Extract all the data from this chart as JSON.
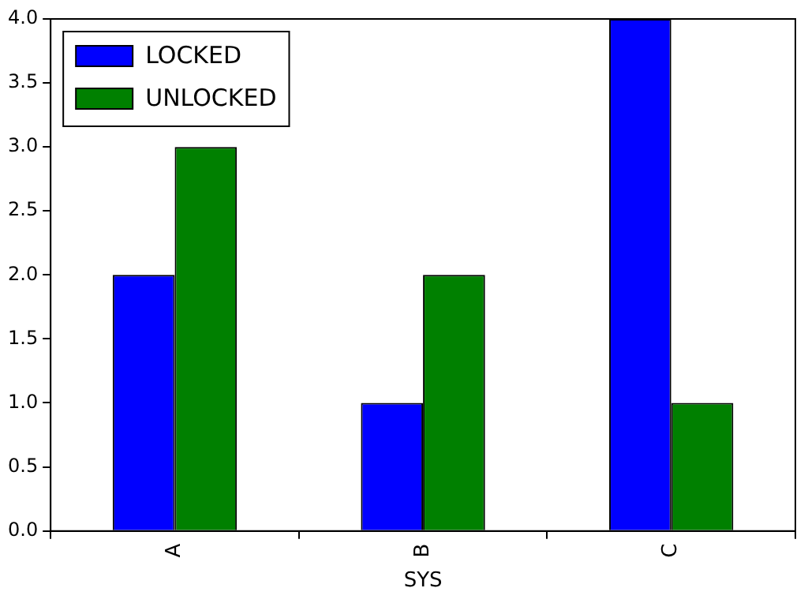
{
  "chart_data": {
    "type": "bar",
    "xlabel": "SYS",
    "categories": [
      "A",
      "B",
      "C"
    ],
    "series": [
      {
        "name": "LOCKED",
        "color": "#0000ff",
        "values": [
          2,
          1,
          4
        ]
      },
      {
        "name": "UNLOCKED",
        "color": "#008000",
        "values": [
          3,
          2,
          1
        ]
      }
    ],
    "ylim": [
      0,
      4
    ],
    "yticks": [
      {
        "value": 0,
        "label": "0.0"
      },
      {
        "value": 0.5,
        "label": "0.5"
      },
      {
        "value": 1,
        "label": "1.0"
      },
      {
        "value": 1.5,
        "label": "1.5"
      },
      {
        "value": 2,
        "label": "2.0"
      },
      {
        "value": 2.5,
        "label": "2.5"
      },
      {
        "value": 3,
        "label": "3.0"
      },
      {
        "value": 3.5,
        "label": "3.5"
      },
      {
        "value": 4,
        "label": "4.0"
      }
    ],
    "grid": false,
    "legend": "top left"
  }
}
